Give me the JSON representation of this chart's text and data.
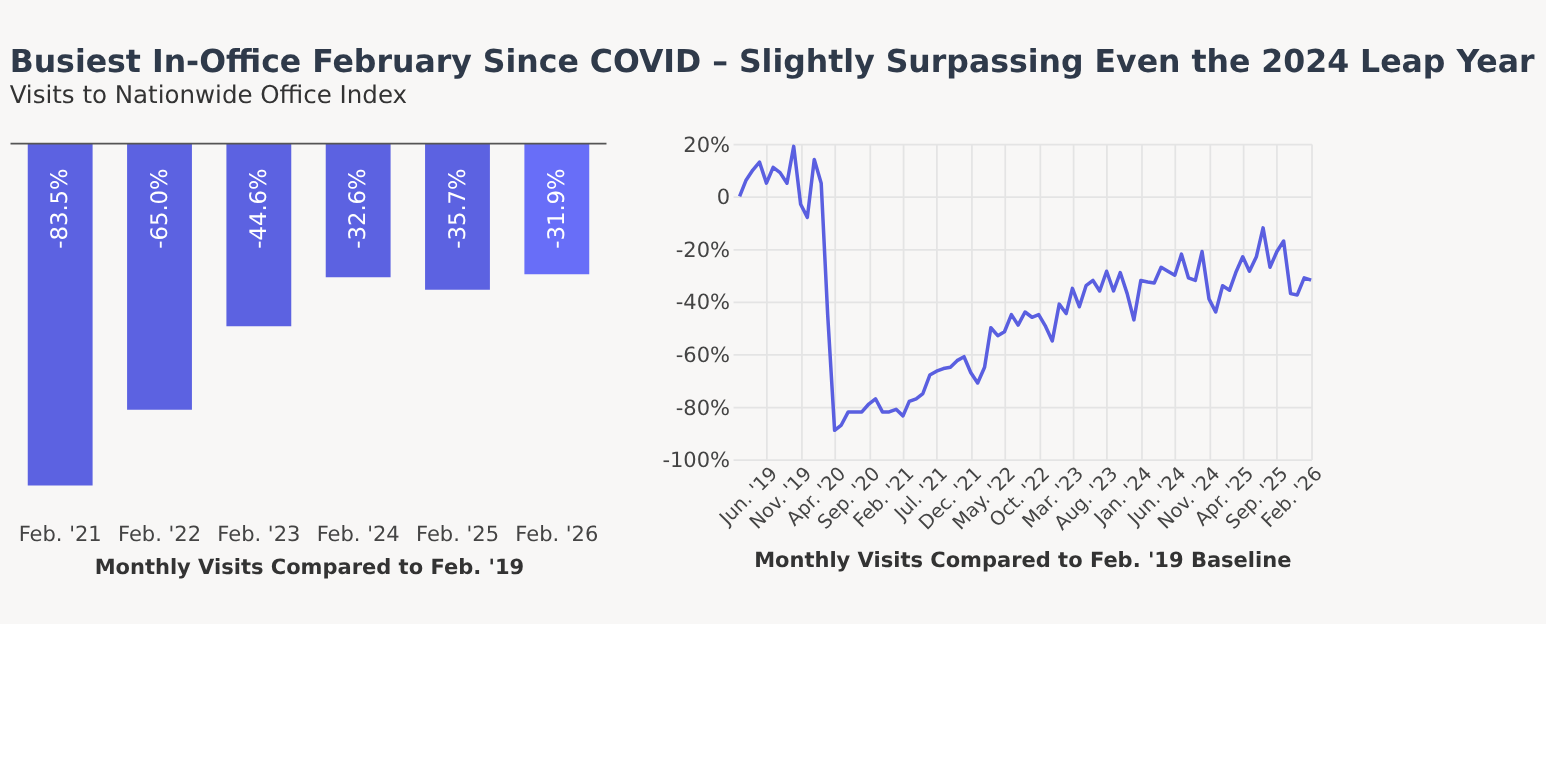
{
  "chart_data": [
    {
      "type": "bar",
      "title": "Busiest In-Office February Since COVID – Slightly Surpassing Even the 2024 Leap Year",
      "subtitle": "Visits to Nationwide Office Index",
      "xlabel": "Monthly Visits Compared to Feb. '19",
      "categories": [
        "Feb. '21",
        "Feb. '22",
        "Feb. '23",
        "Feb. '24",
        "Feb. '25",
        "Feb. '26"
      ],
      "values": [
        -83.5,
        -65.0,
        -44.6,
        -32.6,
        -35.7,
        -31.9
      ],
      "value_labels": [
        "-83.5%",
        "-65.0%",
        "-44.6%",
        "-32.6%",
        "-35.7%",
        "-31.9%"
      ],
      "colors": [
        "#5c62e1",
        "#5c62e1",
        "#5c62e1",
        "#5c62e1",
        "#5c62e1",
        "#686ef8"
      ],
      "grid": false
    },
    {
      "type": "line",
      "xlabel": "Monthly Visits Compared to Feb. '19 Baseline",
      "x": [
        "2019-02",
        "2019-03",
        "2019-04",
        "2019-05",
        "2019-06",
        "2019-07",
        "2019-08",
        "2019-09",
        "2019-10",
        "2019-11",
        "2019-12",
        "2020-01",
        "2020-02",
        "2020-03",
        "2020-04",
        "2020-05",
        "2020-06",
        "2020-07",
        "2020-08",
        "2020-09",
        "2020-10",
        "2020-11",
        "2020-12",
        "2021-01",
        "2021-02",
        "2021-03",
        "2021-04",
        "2021-05",
        "2021-06",
        "2021-07",
        "2021-08",
        "2021-09",
        "2021-10",
        "2021-11",
        "2021-12",
        "2022-01",
        "2022-02",
        "2022-03",
        "2022-04",
        "2022-05",
        "2022-06",
        "2022-07",
        "2022-08",
        "2022-09",
        "2022-10",
        "2022-11",
        "2022-12",
        "2023-01",
        "2023-02",
        "2023-03",
        "2023-04",
        "2023-05",
        "2023-06",
        "2023-07",
        "2023-08",
        "2023-09",
        "2023-10",
        "2023-11",
        "2023-12",
        "2024-01",
        "2024-02",
        "2024-03",
        "2024-04",
        "2024-05",
        "2024-06",
        "2024-07",
        "2024-08",
        "2024-09",
        "2024-10",
        "2024-11",
        "2024-12",
        "2025-01",
        "2025-02",
        "2025-03",
        "2025-04",
        "2025-05",
        "2025-06",
        "2025-07",
        "2025-08",
        "2025-09",
        "2025-10",
        "2025-11",
        "2025-12",
        "2026-01",
        "2026-02"
      ],
      "series": [
        {
          "color": "#5a5fe0",
          "values": [
            0,
            6,
            10,
            13,
            5,
            11,
            9,
            5,
            19,
            -3,
            -8,
            14,
            5,
            -45,
            -89,
            -87,
            -82,
            -82,
            -82,
            -79,
            -77,
            -82,
            -82,
            -81,
            -83.5,
            -78,
            -77,
            -75,
            -68,
            -66.5,
            -65.5,
            -65,
            -62.5,
            -61,
            -67,
            -71,
            -65,
            -50,
            -53,
            -51.5,
            -45,
            -49,
            -44,
            -46,
            -45,
            -49.5,
            -55,
            -41,
            -44.6,
            -35,
            -42,
            -34,
            -32,
            -36,
            -28.5,
            -36,
            -29,
            -37,
            -47,
            -32,
            -32.6,
            -33,
            -27,
            -28.5,
            -30,
            -22,
            -31,
            -32,
            -21,
            -39,
            -44,
            -34,
            -35.7,
            -29,
            -23,
            -28.5,
            -23,
            -12,
            -27,
            -21,
            -17,
            -37,
            -37.5,
            -31,
            -31.9
          ]
        }
      ],
      "xlim": [
        "2019-01",
        "2026-02"
      ],
      "xticks": [
        {
          "value": "2019-06",
          "label": "Jun. '19"
        },
        {
          "value": "2019-11",
          "label": "Nov. '19"
        },
        {
          "value": "2020-04",
          "label": "Apr. '20"
        },
        {
          "value": "2020-09",
          "label": "Sep. '20"
        },
        {
          "value": "2021-02",
          "label": "Feb. '21"
        },
        {
          "value": "2021-07",
          "label": "Jul. '21"
        },
        {
          "value": "2021-12",
          "label": "Dec. '21"
        },
        {
          "value": "2022-05",
          "label": "May. '22"
        },
        {
          "value": "2022-10",
          "label": "Oct. '22"
        },
        {
          "value": "2023-03",
          "label": "Mar. '23"
        },
        {
          "value": "2023-08",
          "label": "Aug. '23"
        },
        {
          "value": "2024-01",
          "label": "Jan. '24"
        },
        {
          "value": "2024-06",
          "label": "Jun. '24"
        },
        {
          "value": "2024-11",
          "label": "Nov. '24"
        },
        {
          "value": "2025-04",
          "label": "Apr. '25"
        },
        {
          "value": "2025-09",
          "label": "Sep. '25"
        },
        {
          "value": "2026-02",
          "label": "Feb. '26"
        }
      ],
      "ylim": [
        -100,
        20
      ],
      "yticks": [
        {
          "value": 20,
          "label": "20%"
        },
        0,
        {
          "value": -20,
          "label": "-20%"
        },
        {
          "value": -40,
          "label": "-40%"
        },
        {
          "value": -60,
          "label": "-60%"
        },
        {
          "value": -80,
          "label": "-80%"
        },
        {
          "value": -100,
          "label": "-100%"
        }
      ],
      "grid": true,
      "marker": "none",
      "line_style": "solid"
    }
  ]
}
